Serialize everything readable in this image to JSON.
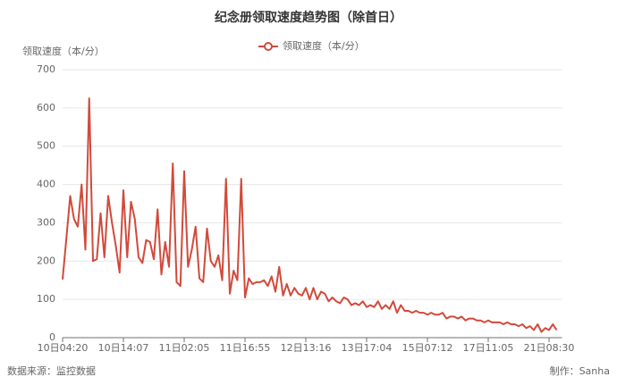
{
  "chart_data": {
    "type": "line",
    "title": "纪念册领取速度趋势图（除首日）",
    "y_label": "领取速度（本/分）",
    "source": "数据来源：监控数据",
    "credit": "制作：Sanha",
    "categories": [
      "10日04:20",
      null,
      null,
      null,
      null,
      null,
      null,
      null,
      null,
      null,
      null,
      null,
      null,
      null,
      null,
      null,
      "10日14:07",
      null,
      null,
      null,
      null,
      null,
      null,
      null,
      null,
      null,
      null,
      null,
      null,
      null,
      null,
      null,
      "11日02:05",
      null,
      null,
      null,
      null,
      null,
      null,
      null,
      null,
      null,
      null,
      null,
      null,
      null,
      null,
      null,
      "11日16:55",
      null,
      null,
      null,
      null,
      null,
      null,
      null,
      null,
      null,
      null,
      null,
      null,
      null,
      null,
      null,
      "12日13:16",
      null,
      null,
      null,
      null,
      null,
      null,
      null,
      null,
      null,
      null,
      null,
      null,
      null,
      null,
      null,
      "13日17:04",
      null,
      null,
      null,
      null,
      null,
      null,
      null,
      null,
      null,
      null,
      null,
      null,
      null,
      null,
      null,
      "15日07:12",
      null,
      null,
      null,
      null,
      null,
      null,
      null,
      null,
      null,
      null,
      null,
      null,
      null,
      null,
      null,
      "17日11:05",
      null,
      null,
      null,
      null,
      null,
      null,
      null,
      null,
      null,
      null,
      null,
      null,
      null,
      null,
      null,
      "21日08:30",
      null,
      null
    ],
    "series": [
      {
        "name": "领取速度（本/分）",
        "color": "#d14a3b",
        "values": [
          152,
          260,
          370,
          310,
          290,
          400,
          230,
          625,
          200,
          205,
          325,
          210,
          370,
          300,
          240,
          170,
          385,
          210,
          355,
          310,
          210,
          195,
          255,
          250,
          205,
          335,
          165,
          250,
          185,
          455,
          145,
          135,
          435,
          185,
          230,
          290,
          155,
          145,
          285,
          200,
          185,
          215,
          150,
          415,
          115,
          175,
          150,
          415,
          105,
          155,
          140,
          145,
          145,
          150,
          135,
          160,
          120,
          185,
          110,
          140,
          110,
          130,
          115,
          110,
          130,
          100,
          130,
          100,
          120,
          115,
          95,
          105,
          95,
          90,
          105,
          100,
          85,
          90,
          85,
          95,
          80,
          85,
          80,
          95,
          75,
          85,
          75,
          95,
          65,
          85,
          70,
          70,
          65,
          70,
          65,
          65,
          60,
          65,
          60,
          60,
          65,
          50,
          55,
          55,
          50,
          55,
          45,
          50,
          50,
          45,
          45,
          40,
          45,
          40,
          40,
          40,
          35,
          40,
          35,
          35,
          30,
          35,
          25,
          30,
          20,
          35,
          15,
          25,
          20,
          35,
          20
        ]
      }
    ],
    "ylim": [
      0,
      700
    ],
    "yticks": [
      0,
      100,
      200,
      300,
      400,
      500,
      600,
      700
    ],
    "grid": true
  }
}
